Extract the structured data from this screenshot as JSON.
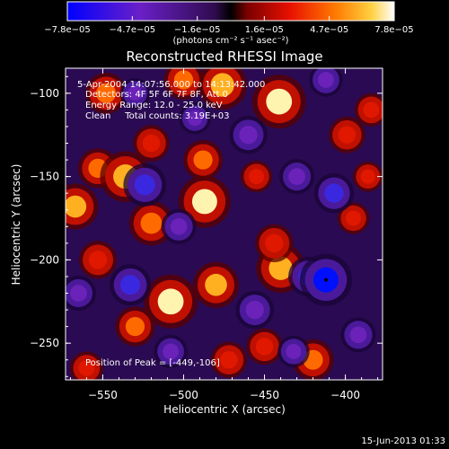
{
  "chart_data": {
    "type": "heatmap",
    "title": "Reconstructed RHESSI Image",
    "xlabel": "Heliocentric X (arcsec)",
    "ylabel": "Heliocentric Y (arcsec)",
    "xlim": [
      -573,
      -377
    ],
    "ylim": [
      -272,
      -85
    ],
    "x_ticks": [
      -550,
      -500,
      -450,
      -400
    ],
    "x_tick_labels": [
      "−550",
      "−500",
      "−450",
      "−400"
    ],
    "y_ticks": [
      -250,
      -200,
      -150,
      -100
    ],
    "y_tick_labels": [
      "−250",
      "−200",
      "−150",
      "−100"
    ],
    "colorbar": {
      "range": [
        -7.8e-05,
        7.8e-05
      ],
      "tick_values": [
        -7.8e-05,
        -4.7e-05,
        -1.6e-05,
        1.6e-05,
        4.7e-05,
        7.8e-05
      ],
      "tick_labels": [
        "−7.8e−05",
        "−4.7e−05",
        "−1.6e−05",
        "1.6e−05",
        "4.7e−05",
        "7.8e−05"
      ],
      "units_label": "(photons cm⁻² s⁻¹ asec⁻²)"
    },
    "annotations": [
      "5-Apr-2004 14:07:56.000 to 14:13:42.000",
      "Detectors: 4F 5F 6F 7F 8F, Att 0",
      "Energy Range: 12.0 - 25.0 keV",
      "Clean     Total counts: 3.19E+03"
    ],
    "peak_text": "Position of Peak = [-449,-106]",
    "peak": [
      -449,
      -106
    ],
    "blobs": [
      {
        "x": -441,
        "y": -105,
        "v": 1.0
      },
      {
        "x": -476,
        "y": -95,
        "v": 0.85
      },
      {
        "x": -500,
        "y": -92,
        "v": 0.55
      },
      {
        "x": -548,
        "y": -100,
        "v": 0.6
      },
      {
        "x": -567,
        "y": -168,
        "v": 0.75
      },
      {
        "x": -553,
        "y": -145,
        "v": 0.55
      },
      {
        "x": -553,
        "y": -200,
        "v": 0.5
      },
      {
        "x": -536,
        "y": -150,
        "v": 0.9
      },
      {
        "x": -520,
        "y": -178,
        "v": 0.7
      },
      {
        "x": -508,
        "y": -225,
        "v": 1.0
      },
      {
        "x": -530,
        "y": -240,
        "v": 0.55
      },
      {
        "x": -487,
        "y": -165,
        "v": 0.95
      },
      {
        "x": -488,
        "y": -140,
        "v": 0.55
      },
      {
        "x": -480,
        "y": -215,
        "v": 0.75
      },
      {
        "x": -472,
        "y": -260,
        "v": 0.45
      },
      {
        "x": -560,
        "y": -265,
        "v": 0.35
      },
      {
        "x": -440,
        "y": -205,
        "v": 0.85
      },
      {
        "x": -444,
        "y": -190,
        "v": 0.5
      },
      {
        "x": -450,
        "y": -252,
        "v": 0.45
      },
      {
        "x": -420,
        "y": -260,
        "v": 0.6
      },
      {
        "x": -399,
        "y": -125,
        "v": 0.45
      },
      {
        "x": -384,
        "y": -110,
        "v": 0.35
      },
      {
        "x": -395,
        "y": -175,
        "v": 0.3
      },
      {
        "x": -386,
        "y": -150,
        "v": 0.25
      },
      {
        "x": -455,
        "y": -150,
        "v": 0.3
      },
      {
        "x": -520,
        "y": -130,
        "v": 0.45
      },
      {
        "x": -533,
        "y": -215,
        "v": -0.6
      },
      {
        "x": -524,
        "y": -155,
        "v": -0.65
      },
      {
        "x": -565,
        "y": -220,
        "v": -0.4
      },
      {
        "x": -530,
        "y": -100,
        "v": -0.25
      },
      {
        "x": -503,
        "y": -180,
        "v": -0.4
      },
      {
        "x": -460,
        "y": -125,
        "v": -0.5
      },
      {
        "x": -456,
        "y": -230,
        "v": -0.5
      },
      {
        "x": -423,
        "y": -210,
        "v": -0.55
      },
      {
        "x": -412,
        "y": -212,
        "v": -0.95
      },
      {
        "x": -407,
        "y": -160,
        "v": -0.55
      },
      {
        "x": -412,
        "y": -92,
        "v": -0.35
      },
      {
        "x": -392,
        "y": -245,
        "v": -0.4
      },
      {
        "x": -430,
        "y": -150,
        "v": -0.4
      },
      {
        "x": -508,
        "y": -255,
        "v": -0.35
      },
      {
        "x": -493,
        "y": -115,
        "v": -0.3
      },
      {
        "x": -432,
        "y": -255,
        "v": -0.3
      }
    ]
  },
  "footer": {
    "date": "15-Jun-2013 01:33"
  }
}
